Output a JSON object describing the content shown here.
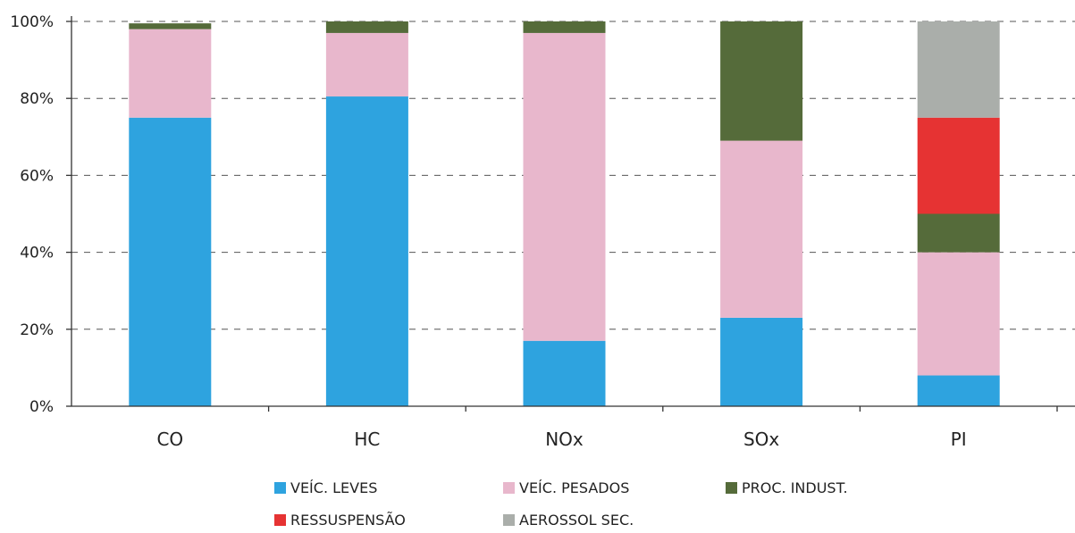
{
  "chart_data": {
    "type": "bar",
    "stacked": true,
    "title": "",
    "xlabel": "",
    "ylabel": "",
    "ylim": [
      0,
      100
    ],
    "y_ticks": [
      "0%",
      "20%",
      "40%",
      "60%",
      "80%",
      "100%"
    ],
    "grid": true,
    "legend_position": "bottom",
    "categories": [
      "CO",
      "HC",
      "NOx",
      "SOx",
      "PI"
    ],
    "series": [
      {
        "name": "VEÍC. LEVES",
        "color": "#2ea3df",
        "values": [
          75,
          80.5,
          17,
          23,
          8
        ]
      },
      {
        "name": "VEÍC. PESADOS",
        "color": "#e8b7cc",
        "values": [
          23,
          16.5,
          80,
          46,
          32
        ]
      },
      {
        "name": "PROC. INDUST.",
        "color": "#556b3a",
        "values": [
          1.5,
          3,
          3,
          31,
          10
        ]
      },
      {
        "name": "RESSUSPENSÃO",
        "color": "#e63333",
        "values": [
          0,
          0,
          0,
          0,
          25
        ]
      },
      {
        "name": "AEROSSOL SEC.",
        "color": "#aaaeaa",
        "values": [
          0,
          0,
          0,
          0,
          25
        ]
      }
    ]
  }
}
